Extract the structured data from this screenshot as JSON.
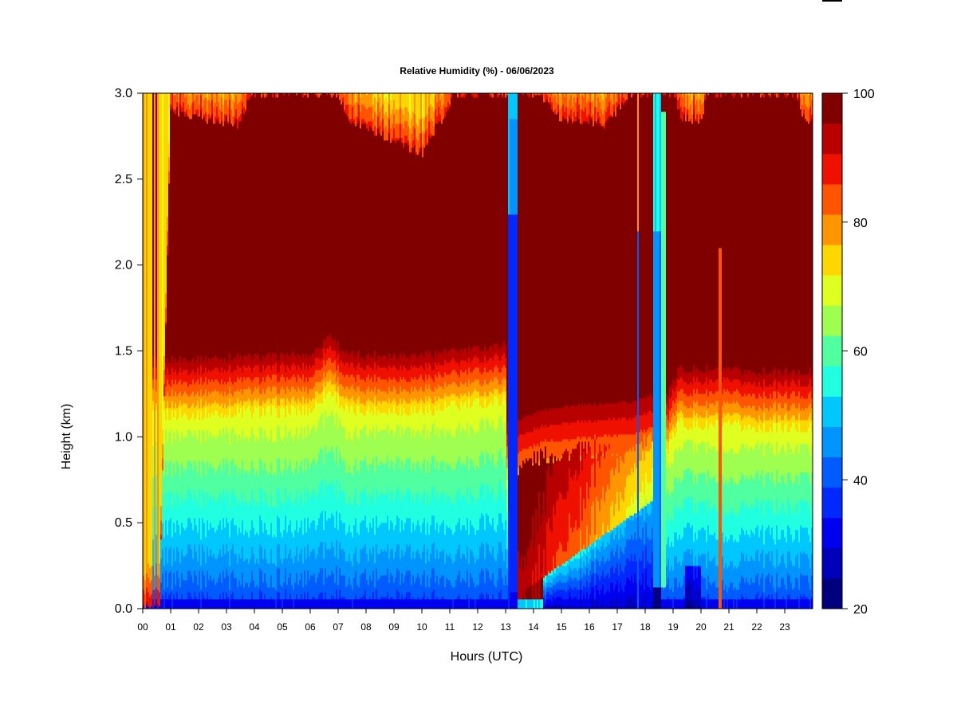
{
  "chart_data": {
    "type": "heatmap",
    "title": "Relative Humidity (%) - 06/06/2023",
    "xlabel": "Hours (UTC)",
    "ylabel": "Height (km)",
    "xlim": [
      0,
      24
    ],
    "ylim": [
      0,
      3
    ],
    "x_ticks": [
      "00",
      "01",
      "02",
      "03",
      "04",
      "05",
      "06",
      "07",
      "08",
      "09",
      "10",
      "11",
      "12",
      "13",
      "14",
      "15",
      "16",
      "17",
      "18",
      "19",
      "20",
      "21",
      "22",
      "23"
    ],
    "y_ticks": [
      "0.0",
      "0.5",
      "1.0",
      "1.5",
      "2.0",
      "2.5",
      "3.0"
    ],
    "colorbar": {
      "min": 20,
      "max": 100,
      "ticks": [
        "20",
        "40",
        "60",
        "80",
        "100"
      ],
      "levels": [
        "#00007f",
        "#0000b8",
        "#0000f0",
        "#0028ff",
        "#005cff",
        "#0094ff",
        "#00c8ff",
        "#20ffdf",
        "#50ff9f",
        "#9fff50",
        "#dfff20",
        "#ffd700",
        "#ff9500",
        "#ff5500",
        "#f01000",
        "#b80000",
        "#800000"
      ]
    },
    "cross_sections": [
      {
        "hour": 3,
        "rh_at_height_km": {
          "0.05": 40,
          "0.3": 50,
          "0.6": 55,
          "0.9": 63,
          "1.2": 78,
          "1.4": 92,
          "1.8": 100,
          "2.5": 100,
          "2.9": 85
        }
      },
      {
        "hour": 9,
        "rh_at_height_km": {
          "0.05": 42,
          "0.3": 58,
          "0.6": 66,
          "0.9": 70,
          "1.2": 80,
          "1.4": 93,
          "1.8": 100,
          "2.5": 100,
          "2.9": 80
        }
      },
      {
        "hour": 13.2,
        "rh_at_height_km": {
          "0.05": 35,
          "0.5": 40,
          "1.0": 40,
          "1.5": 36,
          "2.0": 38,
          "2.5": 48,
          "3.0": 50
        }
      },
      {
        "hour": 14,
        "rh_at_height_km": {
          "0.05": 45,
          "0.2": 98,
          "0.6": 82,
          "0.9": 80,
          "1.1": 92,
          "1.5": 100,
          "2.5": 100,
          "2.9": 100
        }
      },
      {
        "hour": 16.5,
        "rh_at_height_km": {
          "0.05": 35,
          "0.2": 55,
          "0.5": 72,
          "0.9": 82,
          "1.1": 90,
          "1.5": 100,
          "2.5": 100,
          "2.9": 80
        }
      },
      {
        "hour": 18.4,
        "rh_at_height_km": {
          "0.05": 24,
          "0.5": 40,
          "1.0": 44,
          "1.5": 45,
          "2.0": 48,
          "2.5": 55,
          "3.0": 60
        }
      },
      {
        "hour": 21,
        "rh_at_height_km": {
          "0.05": 38,
          "0.3": 52,
          "0.6": 60,
          "0.9": 70,
          "1.2": 82,
          "1.4": 95,
          "1.8": 100,
          "2.5": 100,
          "2.9": 100
        }
      }
    ]
  }
}
